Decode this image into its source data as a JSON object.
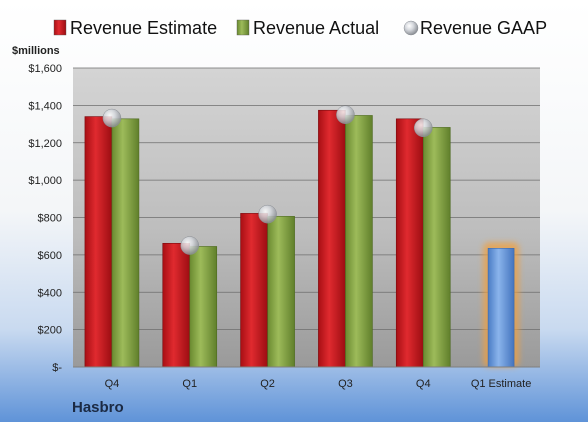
{
  "company": "Hasbro",
  "chart_data": {
    "type": "bar",
    "ylabel": "$millions",
    "ylim": [
      0,
      1600
    ],
    "yticks": [
      0,
      200,
      400,
      600,
      800,
      1000,
      1200,
      1400,
      1600
    ],
    "ytick_labels": [
      "$-",
      "$200",
      "$400",
      "$600",
      "$800",
      "$1,000",
      "$1,200",
      "$1,400",
      "$1,600"
    ],
    "grid": true,
    "legend_position": "top",
    "categories": [
      "Q4",
      "Q1",
      "Q2",
      "Q3",
      "Q4",
      "Q1 Estimate"
    ],
    "series": [
      {
        "name": "Revenue Estimate",
        "marker": "bar",
        "color": "#c0161c",
        "values": [
          1340,
          662,
          822,
          1374,
          1328,
          null
        ]
      },
      {
        "name": "Revenue Actual",
        "marker": "bar",
        "color": "#7a9a3a",
        "values": [
          1328,
          645,
          806,
          1346,
          1282,
          null
        ]
      },
      {
        "name": "Revenue GAAP",
        "marker": "sphere",
        "color": "#b8bcc4",
        "values": [
          1332,
          650,
          818,
          1350,
          1280,
          null
        ]
      }
    ],
    "projection": {
      "category": "Q1 Estimate",
      "value": 635,
      "color": "#5b8fd6",
      "glow_color": "#f0a040"
    }
  }
}
